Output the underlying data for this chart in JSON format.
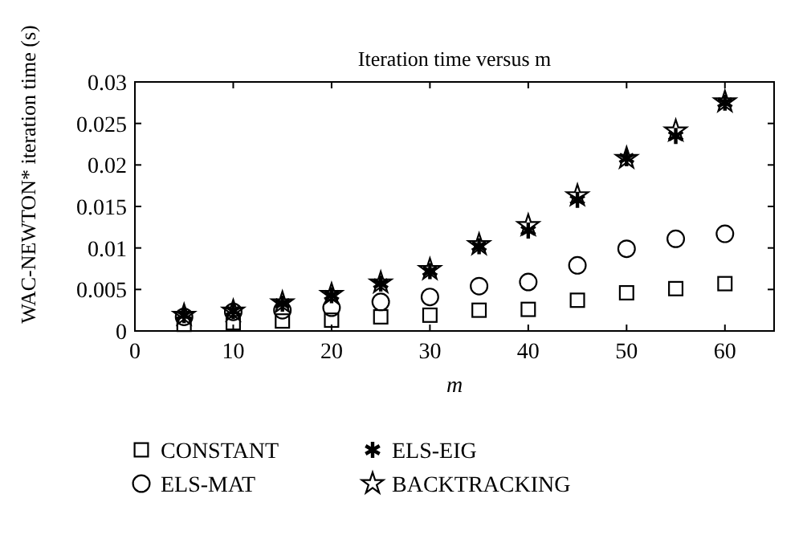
{
  "chart_data": {
    "type": "scatter",
    "title": "Iteration time versus m",
    "xlabel": "m",
    "ylabel": "WAC-NEWTON* iteration time (s)",
    "x": [
      5,
      10,
      15,
      20,
      25,
      30,
      35,
      40,
      45,
      50,
      55,
      60
    ],
    "series": [
      {
        "name": "CONSTANT",
        "color": "#000000",
        "marker": "square",
        "values": [
          0.0008,
          0.001,
          0.0012,
          0.0013,
          0.0017,
          0.0019,
          0.0025,
          0.0026,
          0.0037,
          0.0046,
          0.0051,
          0.0057
        ]
      },
      {
        "name": "ELS-MAT",
        "color": "#000000",
        "marker": "circle",
        "values": [
          0.0017,
          0.0023,
          0.0025,
          0.0028,
          0.0035,
          0.0041,
          0.0054,
          0.0059,
          0.0079,
          0.0099,
          0.0111,
          0.0117
        ]
      },
      {
        "name": "ELS-EIG",
        "color": "#000000",
        "marker": "cross",
        "values": [
          0.0019,
          0.0024,
          0.0033,
          0.0043,
          0.0057,
          0.0072,
          0.0102,
          0.0121,
          0.0158,
          0.0208,
          0.0235,
          0.0275
        ]
      },
      {
        "name": "BACKTRACKING",
        "color": "#000000",
        "marker": "star",
        "values": [
          0.0019,
          0.0024,
          0.0034,
          0.0044,
          0.0058,
          0.0074,
          0.0104,
          0.0127,
          0.0163,
          0.0208,
          0.0241,
          0.0276
        ]
      }
    ],
    "xlim": [
      0,
      65
    ],
    "xticks": [
      0,
      10,
      20,
      30,
      40,
      50,
      60
    ],
    "ylim": [
      0,
      0.03
    ],
    "yticks": [
      0,
      0.005,
      0.01,
      0.015,
      0.02,
      0.025,
      0.03
    ],
    "legend": "bottom",
    "grid": false
  }
}
